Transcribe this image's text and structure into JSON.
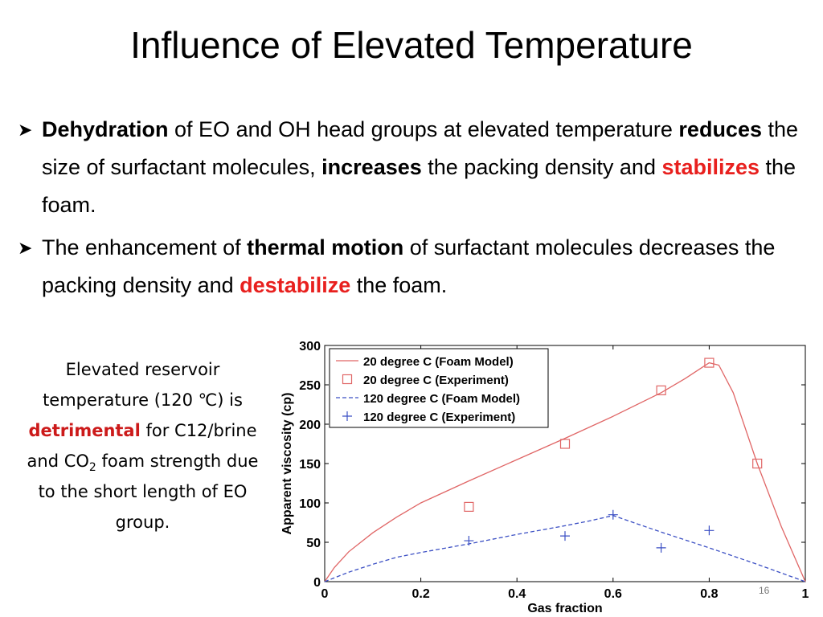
{
  "slide": {
    "title": "Influence of Elevated Temperature",
    "bullets": [
      {
        "segments": [
          {
            "t": "Dehydration",
            "s": "b"
          },
          {
            "t": " of EO and OH head groups at elevated temperature ",
            "s": ""
          },
          {
            "t": "reduces",
            "s": "b"
          },
          {
            "t": " the size of surfactant molecules, ",
            "s": ""
          },
          {
            "t": "increases",
            "s": "b"
          },
          {
            "t": " the packing density and ",
            "s": ""
          },
          {
            "t": "stabilizes",
            "s": "red"
          },
          {
            "t": " the foam.",
            "s": ""
          }
        ]
      },
      {
        "segments": [
          {
            "t": "The enhancement of ",
            "s": ""
          },
          {
            "t": "thermal motion",
            "s": "b"
          },
          {
            "t": " of surfactant molecules decreases the packing density and ",
            "s": ""
          },
          {
            "t": "destabilize",
            "s": "red"
          },
          {
            "t": " the foam.",
            "s": ""
          }
        ]
      }
    ],
    "side_text": {
      "part1": "Elevated reservoir temperature (120 ℃) is ",
      "highlight": "detrimental",
      "part2": " for C12/brine and CO",
      "sub": "2",
      "part3": " foam strength due to the short length of EO group."
    },
    "slide_number": "16"
  },
  "chart_data": {
    "type": "line",
    "xlabel": "Gas fraction",
    "ylabel": "Apparent viscosity (cp)",
    "xlim": [
      0,
      1
    ],
    "ylim": [
      0,
      300
    ],
    "xticks": [
      0,
      0.2,
      0.4,
      0.6,
      0.8,
      1
    ],
    "xtick_labels": [
      "0",
      "0.2",
      "0.4",
      "0.6",
      "0.8",
      "1"
    ],
    "yticks": [
      0,
      50,
      100,
      150,
      200,
      250,
      300
    ],
    "ytick_labels": [
      "0",
      "50",
      "100",
      "150",
      "200",
      "250",
      "300"
    ],
    "legend_position": "top-left",
    "series": [
      {
        "name": "20 degree C (Foam Model)",
        "kind": "line",
        "color": "#e06666",
        "dash": "solid",
        "x": [
          0,
          0.02,
          0.05,
          0.1,
          0.15,
          0.2,
          0.3,
          0.4,
          0.5,
          0.6,
          0.7,
          0.75,
          0.78,
          0.8,
          0.82,
          0.85,
          0.9,
          0.95,
          1
        ],
        "y": [
          0,
          18,
          38,
          62,
          82,
          100,
          128,
          155,
          182,
          210,
          240,
          258,
          270,
          278,
          275,
          240,
          150,
          70,
          0
        ]
      },
      {
        "name": "20 degree C (Experiment)",
        "kind": "marker",
        "marker": "square",
        "color": "#e06666",
        "x": [
          0.3,
          0.5,
          0.7,
          0.8,
          0.9
        ],
        "y": [
          95,
          175,
          243,
          278,
          150
        ]
      },
      {
        "name": "120 degree C (Foam Model)",
        "kind": "line",
        "color": "#3b4fc4",
        "dash": "dashed",
        "x": [
          0,
          0.05,
          0.1,
          0.15,
          0.2,
          0.3,
          0.4,
          0.5,
          0.55,
          0.6,
          0.7,
          0.8,
          0.9,
          1
        ],
        "y": [
          0,
          12,
          22,
          31,
          37,
          48,
          60,
          71,
          77,
          84,
          63,
          43,
          22,
          0
        ]
      },
      {
        "name": "120 degree C (Experiment)",
        "kind": "marker",
        "marker": "plus",
        "color": "#3b4fc4",
        "x": [
          0.3,
          0.5,
          0.6,
          0.7,
          0.8
        ],
        "y": [
          52,
          58,
          85,
          43,
          65
        ]
      }
    ]
  }
}
